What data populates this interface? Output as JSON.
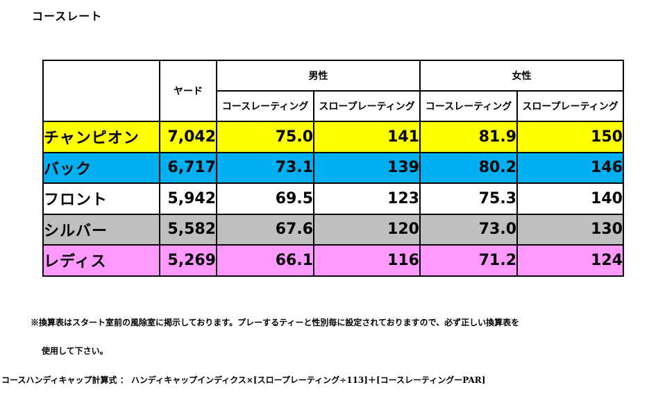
{
  "title": "コースレート",
  "table": {
    "yard_header": "ヤード",
    "group_headers": [
      "男性",
      "女性"
    ],
    "sub_headers": [
      "コースレーティング",
      "スロープレーティング",
      "コースレーティング",
      "スロープレーティング"
    ],
    "rows": [
      {
        "tee": "チャンピオン",
        "yard": "7,042",
        "men_rating": "75.0",
        "men_slope": "141",
        "women_rating": "81.9",
        "women_slope": "150",
        "color": "#ffff00"
      },
      {
        "tee": "バック",
        "yard": "6,717",
        "men_rating": "73.1",
        "men_slope": "139",
        "women_rating": "80.2",
        "women_slope": "146",
        "color": "#00b0f0"
      },
      {
        "tee": "フロント",
        "yard": "5,942",
        "men_rating": "69.5",
        "men_slope": "123",
        "women_rating": "75.3",
        "women_slope": "140",
        "color": "#ffffff"
      },
      {
        "tee": "シルバー",
        "yard": "5,582",
        "men_rating": "67.6",
        "men_slope": "120",
        "women_rating": "73.0",
        "women_slope": "130",
        "color": "#bfbfbf"
      },
      {
        "tee": "レディス",
        "yard": "5,269",
        "men_rating": "66.1",
        "men_slope": "116",
        "women_rating": "71.2",
        "women_slope": "124",
        "color": "#ff99ff"
      }
    ]
  },
  "notes": {
    "line1": "※換算表はスタート室前の風除室に掲示しております。プレーするティーと性別毎に設定されておりますので、必ず正しい換算表を",
    "line2": "使用して下さい。",
    "formula": "コースハンディキャップ計算式 ： ハンディキャップインディクス×[スロープレーティング÷113]＋[コースレーティングーPAR]"
  }
}
